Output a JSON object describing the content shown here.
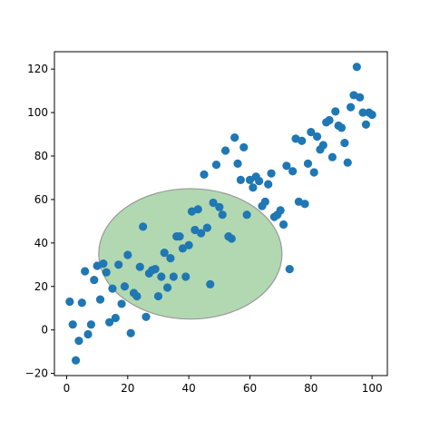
{
  "chart_data": {
    "type": "scatter",
    "title": "",
    "xlabel": "",
    "ylabel": "",
    "xlim": [
      -4,
      105
    ],
    "ylim": [
      -21,
      128
    ],
    "xticks": [
      0,
      20,
      40,
      60,
      80,
      100
    ],
    "yticks": [
      -20,
      0,
      20,
      40,
      60,
      80,
      100,
      120
    ],
    "xtick_labels": [
      "0",
      "20",
      "40",
      "60",
      "80",
      "100"
    ],
    "ytick_labels": [
      "−20",
      "0",
      "20",
      "40",
      "60",
      "80",
      "100",
      "120"
    ],
    "grid": false,
    "legend": "none",
    "series": [
      {
        "color": "#1f77b4",
        "points": [
          [
            1,
            13
          ],
          [
            2,
            2.5
          ],
          [
            3,
            -14
          ],
          [
            4,
            -5
          ],
          [
            5,
            12.5
          ],
          [
            6,
            27
          ],
          [
            7,
            -2
          ],
          [
            8,
            2.5
          ],
          [
            9,
            23
          ],
          [
            10,
            29.5
          ],
          [
            11,
            14
          ],
          [
            12,
            30.5
          ],
          [
            13,
            26.5
          ],
          [
            14,
            3.5
          ],
          [
            15,
            19
          ],
          [
            16,
            5.5
          ],
          [
            17,
            30
          ],
          [
            18,
            12
          ],
          [
            19,
            20
          ],
          [
            20,
            34.5
          ],
          [
            21,
            -1.5
          ],
          [
            22,
            17
          ],
          [
            23,
            15.5
          ],
          [
            24,
            29
          ],
          [
            25,
            47.5
          ],
          [
            26,
            6
          ],
          [
            27,
            26
          ],
          [
            28,
            27.5
          ],
          [
            29,
            28
          ],
          [
            30,
            15.5
          ],
          [
            31,
            24.5
          ],
          [
            32,
            35.5
          ],
          [
            33,
            19.5
          ],
          [
            34,
            33
          ],
          [
            35,
            24.5
          ],
          [
            36,
            43
          ],
          [
            37,
            43
          ],
          [
            38,
            37.5
          ],
          [
            39,
            24.5
          ],
          [
            40,
            39
          ],
          [
            41,
            54.5
          ],
          [
            42,
            46
          ],
          [
            43,
            55.5
          ],
          [
            44,
            44.5
          ],
          [
            45,
            71.5
          ],
          [
            46,
            47
          ],
          [
            47,
            21
          ],
          [
            48,
            58.5
          ],
          [
            49,
            76
          ],
          [
            50,
            56.5
          ],
          [
            51,
            53
          ],
          [
            52,
            82.5
          ],
          [
            53,
            43
          ],
          [
            54,
            42
          ],
          [
            55,
            88.5
          ],
          [
            56,
            76.5
          ],
          [
            57,
            69
          ],
          [
            58,
            84
          ],
          [
            59,
            53
          ],
          [
            60,
            69
          ],
          [
            61,
            65.5
          ],
          [
            62,
            70.5
          ],
          [
            63,
            68.5
          ],
          [
            64,
            57
          ],
          [
            65,
            59
          ],
          [
            66,
            67
          ],
          [
            67,
            72
          ],
          [
            68,
            52
          ],
          [
            69,
            53
          ],
          [
            70,
            55
          ],
          [
            71,
            48.5
          ],
          [
            72,
            75.5
          ],
          [
            73,
            28
          ],
          [
            74,
            73
          ],
          [
            75,
            88
          ],
          [
            76,
            59
          ],
          [
            77,
            87
          ],
          [
            78,
            58
          ],
          [
            79,
            76.5
          ],
          [
            80,
            91
          ],
          [
            81,
            72.5
          ],
          [
            82,
            89
          ],
          [
            83,
            83
          ],
          [
            84,
            85
          ],
          [
            85,
            95.5
          ],
          [
            86,
            96.5
          ],
          [
            87,
            79.5
          ],
          [
            88,
            100.5
          ],
          [
            89,
            94
          ],
          [
            90,
            93
          ],
          [
            91,
            86
          ],
          [
            92,
            77
          ],
          [
            93,
            102.5
          ],
          [
            94,
            108
          ],
          [
            95,
            121
          ],
          [
            96,
            107
          ],
          [
            97,
            100
          ],
          [
            98,
            94.5
          ],
          [
            99,
            100
          ],
          [
            100,
            99
          ]
        ]
      }
    ],
    "ellipse": {
      "center": [
        40.5,
        35
      ],
      "width": 60,
      "height": 60,
      "fill": "#b2d8b2",
      "stroke": "#999999"
    }
  }
}
